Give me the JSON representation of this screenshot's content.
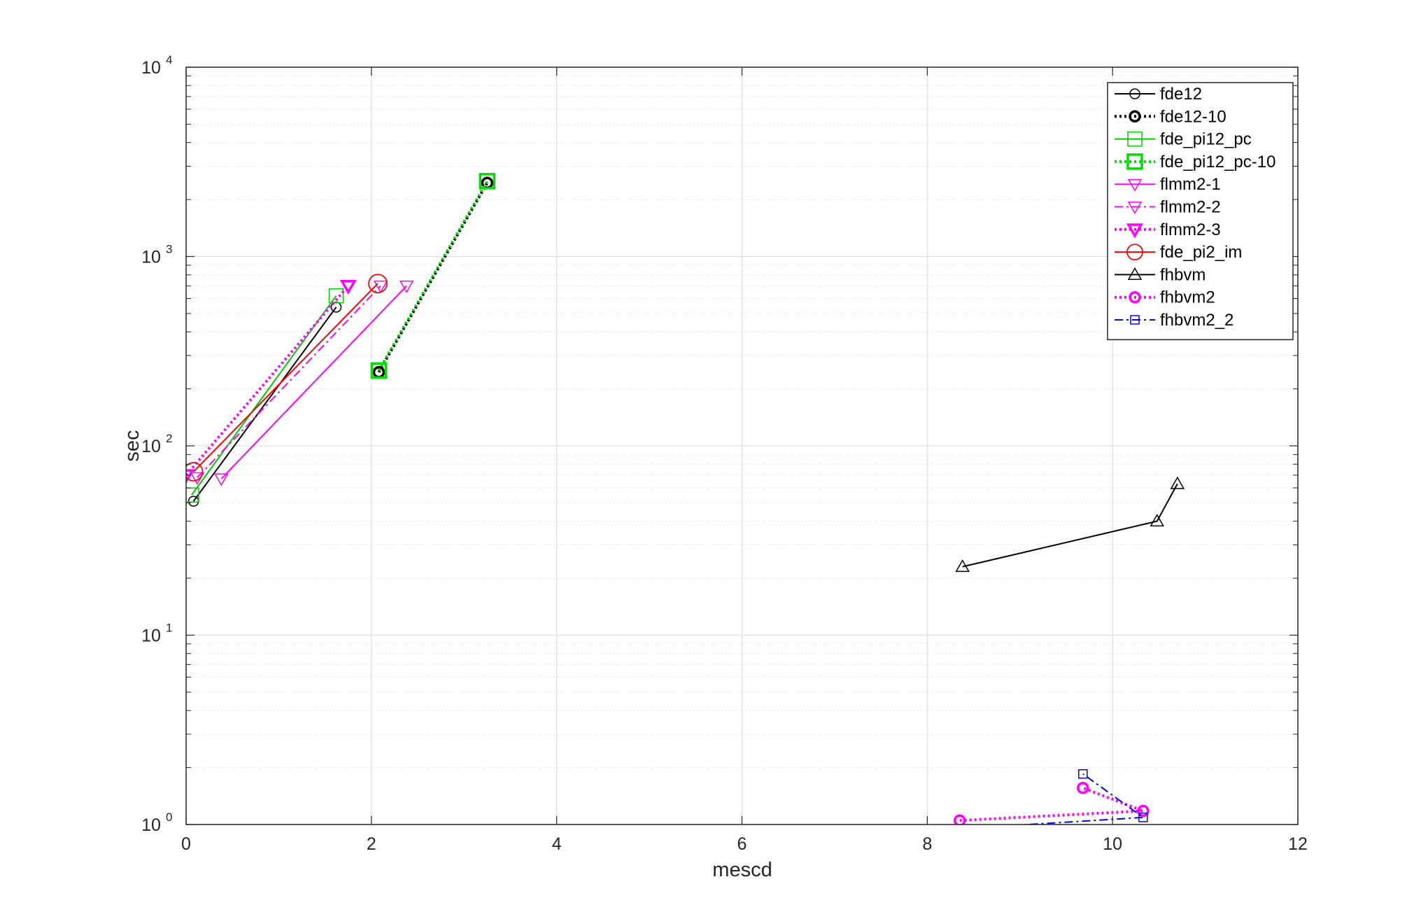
{
  "chart_data": {
    "type": "line",
    "xlabel": "mescd",
    "ylabel": "sec",
    "xlim": [
      0,
      12
    ],
    "ylim": [
      1,
      10000
    ],
    "yscale": "log",
    "grid": true,
    "minor_grid": true,
    "legend_position": "top-right",
    "x_ticks": [
      {
        "value": 0,
        "label": "0"
      },
      {
        "value": 2,
        "label": "2"
      },
      {
        "value": 4,
        "label": "4"
      },
      {
        "value": 6,
        "label": "6"
      },
      {
        "value": 8,
        "label": "8"
      },
      {
        "value": 10,
        "label": "10"
      },
      {
        "value": 12,
        "label": "12"
      }
    ],
    "y_ticks": [
      {
        "value": 1,
        "base": "10",
        "exp": "0"
      },
      {
        "value": 10,
        "base": "10",
        "exp": "1"
      },
      {
        "value": 100,
        "base": "10",
        "exp": "2"
      },
      {
        "value": 1000,
        "base": "10",
        "exp": "3"
      },
      {
        "value": 10000,
        "base": "10",
        "exp": "4"
      }
    ],
    "series": [
      {
        "name": "fde12",
        "color": "#000000",
        "line": "solid",
        "width": 2,
        "marker": "circle",
        "msize": 7,
        "mlw": 1.5,
        "points": [
          [
            0.08,
            51
          ],
          [
            1.62,
            540
          ]
        ]
      },
      {
        "name": "fde12-10",
        "color": "#000000",
        "line": "dotted",
        "width": 4,
        "marker": "circle",
        "msize": 7,
        "mlw": 3.5,
        "points": [
          [
            2.08,
            245
          ],
          [
            3.25,
            2450
          ]
        ]
      },
      {
        "name": "fde_pi12_pc",
        "color": "#00cc00",
        "line": "solid",
        "width": 2,
        "marker": "square",
        "msize": 10,
        "mlw": 1.5,
        "points": [
          [
            0.06,
            55
          ],
          [
            1.62,
            620
          ]
        ]
      },
      {
        "name": "fde_pi12_pc-10",
        "color": "#00dd00",
        "line": "dotted",
        "width": 4,
        "marker": "square",
        "msize": 10,
        "mlw": 3.5,
        "points": [
          [
            2.08,
            250
          ],
          [
            3.25,
            2500
          ]
        ]
      },
      {
        "name": "flmm2-1",
        "color": "#ff00ff",
        "line": "solid",
        "width": 2,
        "marker": "triangle-down",
        "msize": 9,
        "mlw": 1.5,
        "points": [
          [
            0.38,
            67
          ],
          [
            2.38,
            700
          ]
        ]
      },
      {
        "name": "flmm2-2",
        "color": "#ff00ff",
        "line": "dashdot",
        "width": 2,
        "marker": "triangle-down",
        "msize": 9,
        "mlw": 1.5,
        "points": [
          [
            0.12,
            68
          ],
          [
            2.1,
            700
          ]
        ]
      },
      {
        "name": "flmm2-3",
        "color": "#ff00ff",
        "line": "dotted",
        "width": 4,
        "marker": "triangle-down",
        "msize": 9,
        "mlw": 3.5,
        "points": [
          [
            0.0,
            70
          ],
          [
            1.75,
            700
          ]
        ]
      },
      {
        "name": "fde_pi2_im",
        "color": "#ff0000",
        "line": "solid",
        "width": 2,
        "marker": "circle",
        "msize": 13,
        "mlw": 1.8,
        "points": [
          [
            0.08,
            73
          ],
          [
            2.07,
            720
          ]
        ]
      },
      {
        "name": "fhbvm",
        "color": "#000000",
        "line": "solid",
        "width": 2,
        "marker": "triangle-up",
        "msize": 9,
        "mlw": 1.5,
        "points": [
          [
            8.38,
            23
          ],
          [
            10.48,
            40
          ],
          [
            10.7,
            63
          ]
        ]
      },
      {
        "name": "fhbvm2",
        "color": "#ff00ff",
        "line": "dotted",
        "width": 4,
        "marker": "circle",
        "msize": 7,
        "mlw": 3.5,
        "points": [
          [
            8.35,
            1.05
          ],
          [
            10.33,
            1.18
          ],
          [
            9.68,
            1.56
          ]
        ]
      },
      {
        "name": "fhbvm2_2",
        "color": "#0000ff",
        "line": "dashdot",
        "width": 2,
        "marker": "square",
        "msize": 6,
        "mlw": 1.5,
        "points": [
          [
            8.35,
            0.95
          ],
          [
            10.33,
            1.09
          ],
          [
            9.68,
            1.85
          ]
        ]
      }
    ]
  }
}
